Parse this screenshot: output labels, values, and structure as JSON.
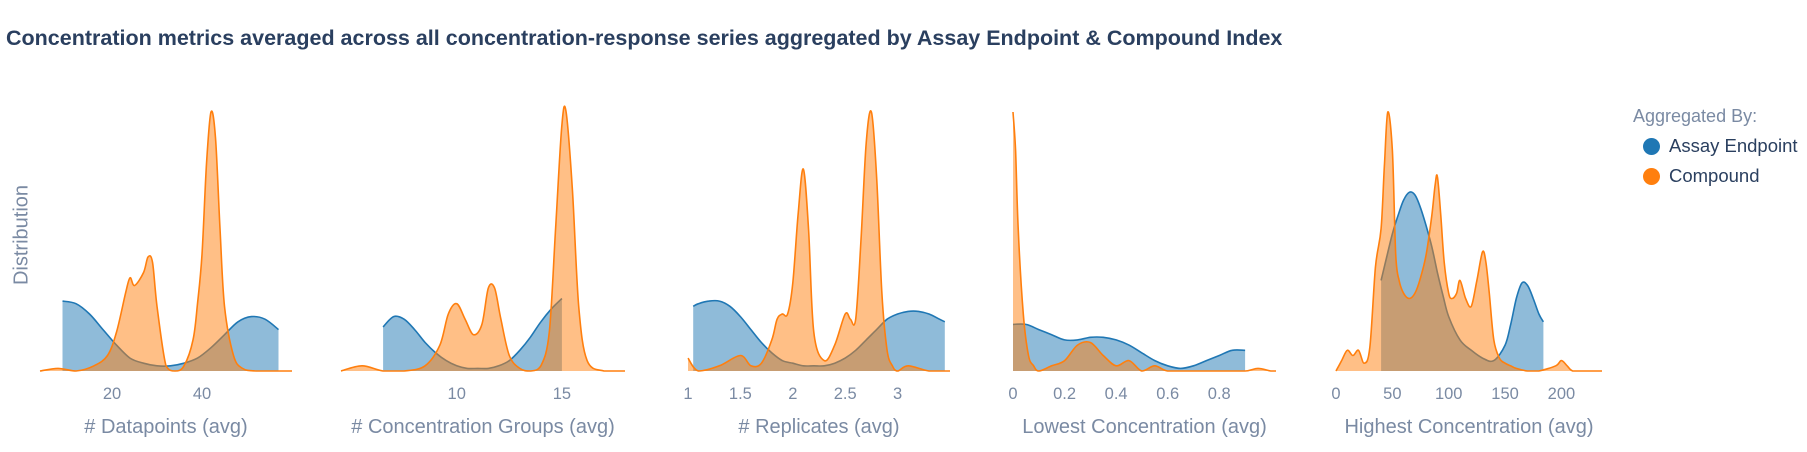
{
  "title": "Concentration metrics averaged across all concentration-response series aggregated by Assay Endpoint & Compound Index",
  "ylabel": "Distribution",
  "legend": {
    "title": "Aggregated By:",
    "items": [
      {
        "label": "Assay Endpoint",
        "color": "#1f77b4"
      },
      {
        "label": "Compound",
        "color": "#ff7f0e"
      }
    ]
  },
  "chart_data": [
    {
      "type": "area",
      "xlabel": "# Datapoints (avg)",
      "xlim": [
        4,
        60
      ],
      "ticks": [
        20,
        40
      ],
      "tick_labels": [
        "20",
        "40"
      ],
      "series": [
        {
          "name": "Assay Endpoint",
          "x": [
            9,
            12,
            15,
            18,
            21,
            24,
            27,
            30,
            33,
            36,
            39,
            42,
            45,
            48,
            51,
            54,
            57
          ],
          "y": [
            0.27,
            0.26,
            0.22,
            0.16,
            0.1,
            0.05,
            0.03,
            0.02,
            0.02,
            0.03,
            0.05,
            0.09,
            0.14,
            0.19,
            0.21,
            0.2,
            0.16
          ]
        },
        {
          "name": "Compound",
          "x": [
            4,
            8,
            12,
            16,
            19,
            21,
            23,
            24,
            25,
            27,
            28,
            29,
            30,
            32,
            34,
            36,
            38,
            39,
            40,
            41,
            42,
            43,
            44,
            45,
            47,
            49,
            52,
            56,
            60
          ],
          "y": [
            0.0,
            0.01,
            0.0,
            0.02,
            0.06,
            0.15,
            0.3,
            0.36,
            0.33,
            0.38,
            0.44,
            0.42,
            0.25,
            0.02,
            0.0,
            0.02,
            0.12,
            0.26,
            0.45,
            0.8,
            1.0,
            0.9,
            0.55,
            0.25,
            0.06,
            0.01,
            0.0,
            0.0,
            0.0
          ]
        }
      ]
    },
    {
      "type": "area",
      "xlabel": "# Concentration Groups (avg)",
      "xlim": [
        4.5,
        18
      ],
      "ticks": [
        10,
        15
      ],
      "tick_labels": [
        "10",
        "15"
      ],
      "series": [
        {
          "name": "Assay Endpoint",
          "x": [
            6.5,
            7,
            7.5,
            8,
            8.5,
            9,
            9.5,
            10,
            10.5,
            11,
            11.5,
            12,
            12.5,
            13,
            13.5,
            14,
            14.5,
            15
          ],
          "y": [
            0.17,
            0.21,
            0.2,
            0.16,
            0.11,
            0.07,
            0.04,
            0.02,
            0.01,
            0.01,
            0.01,
            0.02,
            0.04,
            0.08,
            0.13,
            0.19,
            0.24,
            0.28
          ]
        },
        {
          "name": "Compound",
          "x": [
            4.5,
            5.5,
            6.5,
            7.5,
            8.5,
            9.2,
            9.6,
            10,
            10.4,
            10.8,
            11.2,
            11.5,
            11.8,
            12.1,
            12.5,
            13,
            13.5,
            14,
            14.4,
            14.7,
            15,
            15.2,
            15.5,
            15.8,
            16.2,
            17,
            18
          ],
          "y": [
            0.0,
            0.02,
            0.0,
            0.0,
            0.02,
            0.1,
            0.22,
            0.26,
            0.2,
            0.14,
            0.18,
            0.32,
            0.32,
            0.2,
            0.06,
            0.01,
            0.0,
            0.02,
            0.15,
            0.55,
            0.95,
            1.0,
            0.7,
            0.25,
            0.04,
            0.0,
            0.0
          ]
        }
      ]
    },
    {
      "type": "area",
      "xlabel": "# Replicates (avg)",
      "xlim": [
        1,
        3.5
      ],
      "ticks": [
        1,
        1.5,
        2,
        2.5,
        3
      ],
      "tick_labels": [
        "1",
        "1.5",
        "2",
        "2.5",
        "3"
      ],
      "series": [
        {
          "name": "Assay Endpoint",
          "x": [
            1.05,
            1.1,
            1.2,
            1.3,
            1.4,
            1.5,
            1.6,
            1.7,
            1.8,
            1.9,
            2.0,
            2.1,
            2.2,
            2.3,
            2.4,
            2.5,
            2.6,
            2.7,
            2.8,
            2.9,
            3.0,
            3.1,
            3.2,
            3.3,
            3.4,
            3.45
          ],
          "y": [
            0.25,
            0.26,
            0.27,
            0.27,
            0.25,
            0.21,
            0.16,
            0.11,
            0.07,
            0.04,
            0.03,
            0.02,
            0.02,
            0.02,
            0.03,
            0.05,
            0.08,
            0.12,
            0.16,
            0.2,
            0.22,
            0.23,
            0.23,
            0.22,
            0.2,
            0.19
          ]
        },
        {
          "name": "Compound",
          "x": [
            1.0,
            1.1,
            1.3,
            1.5,
            1.6,
            1.7,
            1.8,
            1.85,
            1.9,
            1.95,
            2.0,
            2.05,
            2.1,
            2.15,
            2.2,
            2.3,
            2.4,
            2.5,
            2.55,
            2.6,
            2.65,
            2.7,
            2.75,
            2.8,
            2.85,
            2.9,
            2.95,
            3.0,
            3.1,
            3.3,
            3.5
          ],
          "y": [
            0.05,
            0.0,
            0.02,
            0.06,
            0.02,
            0.03,
            0.12,
            0.2,
            0.22,
            0.22,
            0.34,
            0.6,
            0.78,
            0.55,
            0.15,
            0.04,
            0.1,
            0.22,
            0.2,
            0.2,
            0.5,
            0.88,
            1.0,
            0.75,
            0.3,
            0.08,
            0.02,
            0.0,
            0.02,
            0.0,
            0.0
          ]
        }
      ]
    },
    {
      "type": "area",
      "xlabel": "Lowest Concentration (avg)",
      "xlim": [
        0,
        1.02
      ],
      "ticks": [
        0,
        0.2,
        0.4,
        0.6,
        0.8
      ],
      "tick_labels": [
        "0",
        "0.2",
        "0.4",
        "0.6",
        "0.8"
      ],
      "series": [
        {
          "name": "Assay Endpoint",
          "x": [
            0.0,
            0.05,
            0.1,
            0.15,
            0.2,
            0.25,
            0.3,
            0.35,
            0.4,
            0.45,
            0.5,
            0.55,
            0.6,
            0.65,
            0.7,
            0.75,
            0.8,
            0.85,
            0.9
          ],
          "y": [
            0.18,
            0.18,
            0.16,
            0.14,
            0.12,
            0.12,
            0.13,
            0.13,
            0.12,
            0.1,
            0.07,
            0.04,
            0.02,
            0.01,
            0.02,
            0.04,
            0.06,
            0.08,
            0.08
          ]
        },
        {
          "name": "Compound",
          "x": [
            0.0,
            0.01,
            0.02,
            0.04,
            0.06,
            0.08,
            0.1,
            0.15,
            0.2,
            0.25,
            0.3,
            0.35,
            0.4,
            0.45,
            0.5,
            0.55,
            0.6,
            0.7,
            0.8,
            0.9,
            0.95,
            1.0,
            1.02
          ],
          "y": [
            1.0,
            0.85,
            0.55,
            0.22,
            0.06,
            0.02,
            0.0,
            0.02,
            0.04,
            0.1,
            0.11,
            0.06,
            0.02,
            0.04,
            0.0,
            0.02,
            0.0,
            0.0,
            0.0,
            0.0,
            0.01,
            0.0,
            0.0
          ]
        }
      ]
    },
    {
      "type": "area",
      "xlabel": "Highest Concentration (avg)",
      "xlim": [
        0,
        236
      ],
      "ticks": [
        0,
        50,
        100,
        150,
        200
      ],
      "tick_labels": [
        "0",
        "50",
        "100",
        "150",
        "200"
      ],
      "series": [
        {
          "name": "Assay Endpoint",
          "x": [
            40,
            45,
            50,
            55,
            60,
            65,
            70,
            75,
            80,
            85,
            90,
            95,
            100,
            110,
            120,
            130,
            140,
            150,
            155,
            160,
            165,
            170,
            175,
            180,
            184
          ],
          "y": [
            0.35,
            0.44,
            0.53,
            0.6,
            0.66,
            0.69,
            0.68,
            0.63,
            0.56,
            0.48,
            0.38,
            0.29,
            0.21,
            0.12,
            0.08,
            0.05,
            0.04,
            0.1,
            0.18,
            0.28,
            0.34,
            0.33,
            0.28,
            0.22,
            0.19
          ]
        },
        {
          "name": "Compound",
          "x": [
            0,
            5,
            10,
            15,
            20,
            25,
            30,
            35,
            40,
            43,
            46,
            50,
            53,
            56,
            60,
            65,
            70,
            75,
            80,
            85,
            88,
            90,
            93,
            96,
            100,
            103,
            107,
            110,
            115,
            120,
            125,
            130,
            133,
            136,
            140,
            145,
            150,
            155,
            160,
            170,
            180,
            195,
            200,
            205,
            210,
            220,
            236
          ],
          "y": [
            0.0,
            0.04,
            0.08,
            0.06,
            0.08,
            0.03,
            0.09,
            0.4,
            0.55,
            0.8,
            1.0,
            0.85,
            0.45,
            0.35,
            0.3,
            0.28,
            0.3,
            0.36,
            0.45,
            0.6,
            0.72,
            0.75,
            0.6,
            0.42,
            0.3,
            0.28,
            0.3,
            0.35,
            0.28,
            0.25,
            0.35,
            0.46,
            0.42,
            0.3,
            0.12,
            0.05,
            0.03,
            0.02,
            0.01,
            0.0,
            0.0,
            0.02,
            0.04,
            0.02,
            0.0,
            0.0,
            0.0
          ]
        }
      ]
    }
  ]
}
